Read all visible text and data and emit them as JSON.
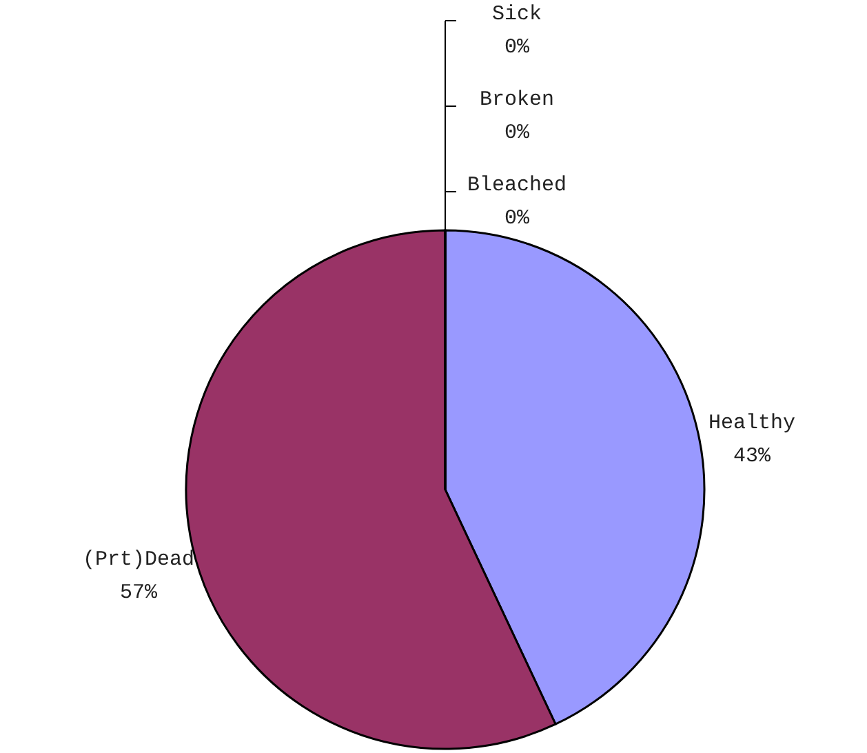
{
  "chart_data": {
    "type": "pie",
    "categories": [
      "Healthy",
      "(Prt)Dead",
      "Bleached",
      "Broken",
      "Sick"
    ],
    "values": [
      43,
      57,
      0,
      0,
      0
    ],
    "value_labels": [
      "43%",
      "57%",
      "0%",
      "0%",
      "0%"
    ],
    "colors": [
      "#9999ff",
      "#993366",
      "#ffffcc",
      "#ccffff",
      "#660066"
    ]
  }
}
